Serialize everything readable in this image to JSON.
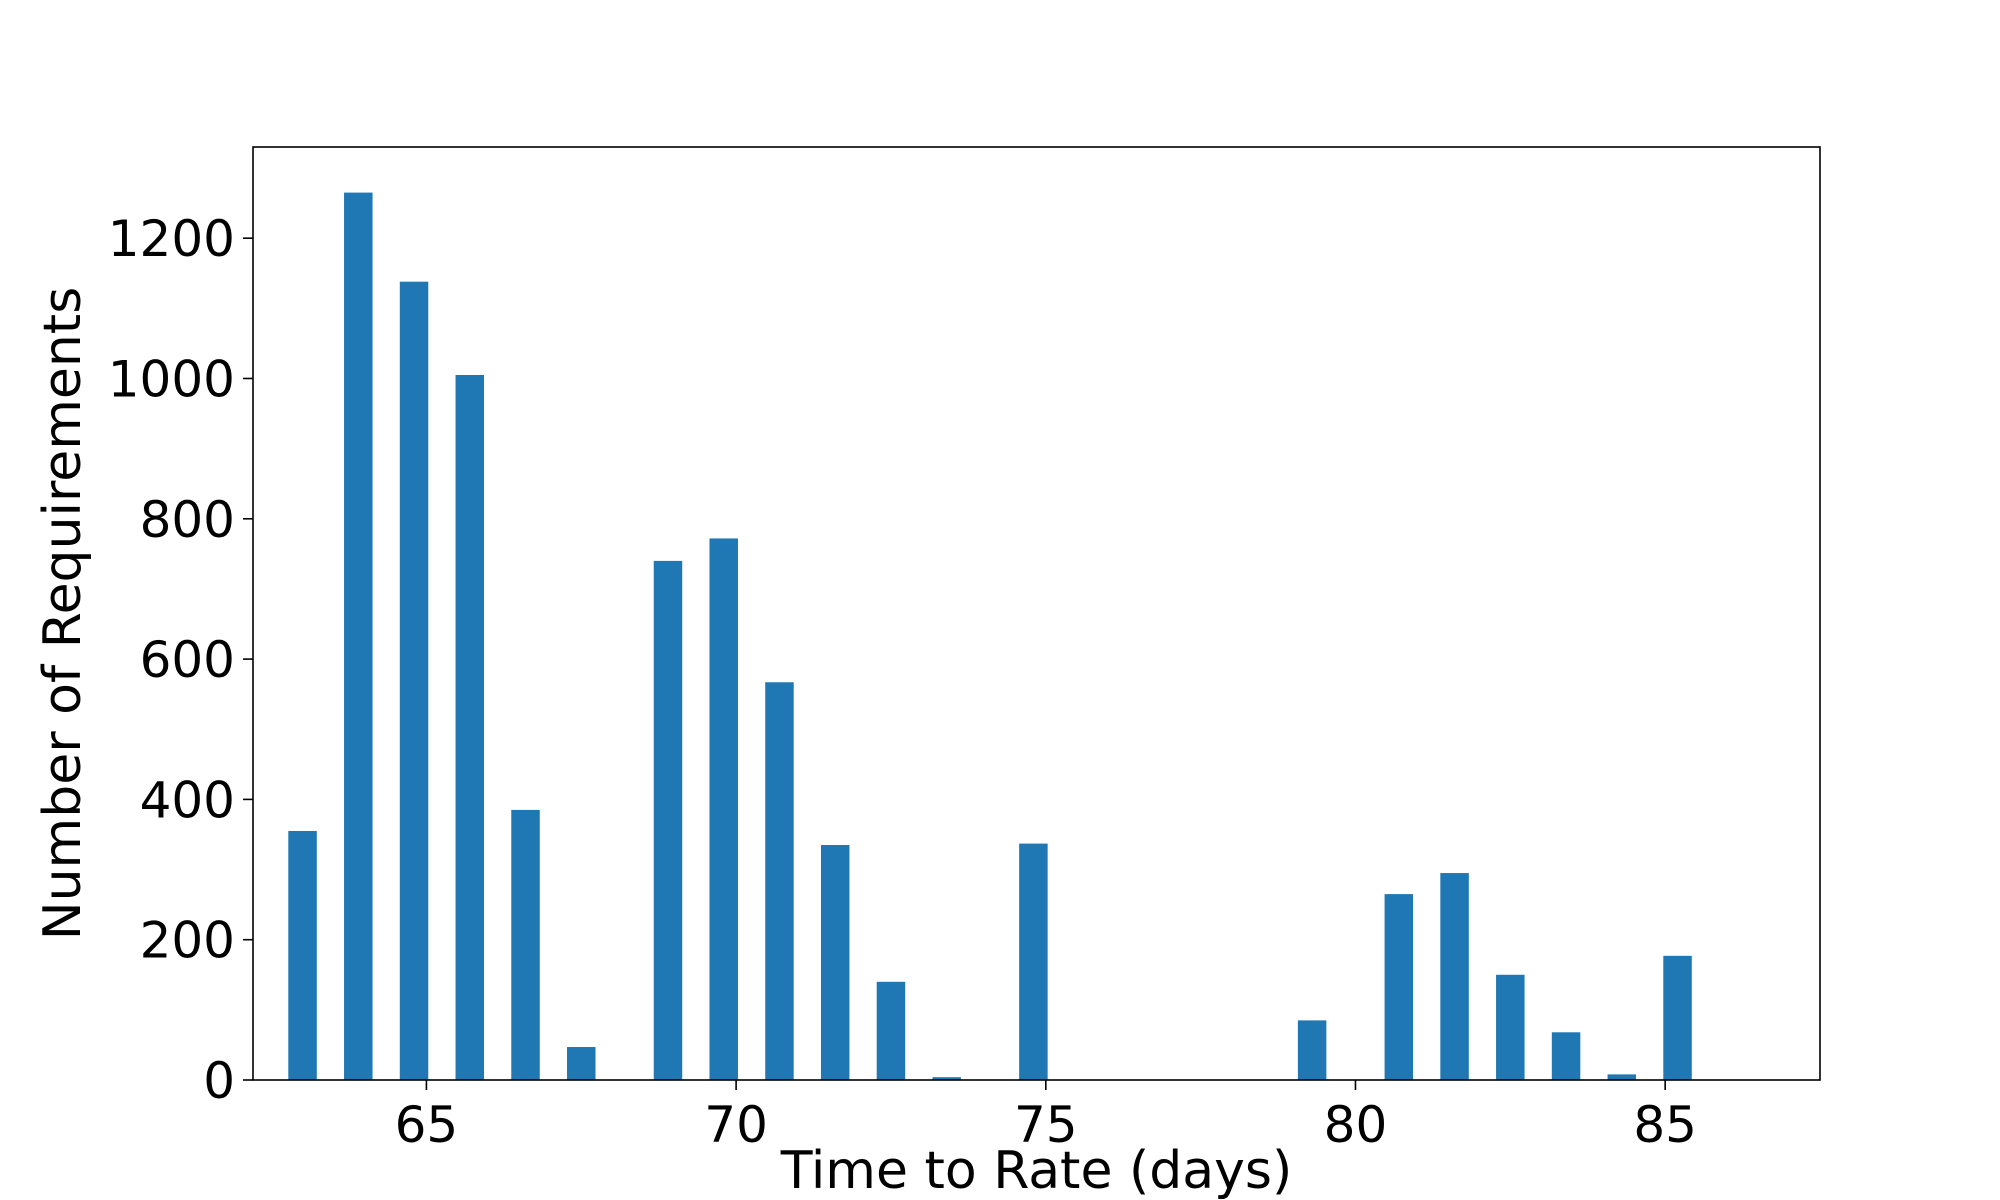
{
  "chart_data": {
    "type": "bar",
    "title": "",
    "xlabel": "Time to Rate (days)",
    "ylabel": "Number of Requirements",
    "xlim": [
      62.2,
      87.5
    ],
    "ylim": [
      0,
      1330
    ],
    "xticks": [
      65,
      70,
      75,
      80,
      85
    ],
    "yticks": [
      0,
      200,
      400,
      600,
      800,
      1000,
      1200
    ],
    "bar_width_days": 0.46,
    "color": "#1f77b4",
    "grid": false,
    "legend": "none",
    "bars": [
      {
        "x": 63.0,
        "value": 355
      },
      {
        "x": 63.9,
        "value": 1265
      },
      {
        "x": 64.8,
        "value": 1138
      },
      {
        "x": 65.7,
        "value": 1005
      },
      {
        "x": 66.6,
        "value": 385
      },
      {
        "x": 67.5,
        "value": 47
      },
      {
        "x": 68.9,
        "value": 740
      },
      {
        "x": 69.8,
        "value": 772
      },
      {
        "x": 70.7,
        "value": 567
      },
      {
        "x": 71.6,
        "value": 335
      },
      {
        "x": 72.5,
        "value": 140
      },
      {
        "x": 73.4,
        "value": 4
      },
      {
        "x": 74.8,
        "value": 337
      },
      {
        "x": 79.3,
        "value": 85
      },
      {
        "x": 80.7,
        "value": 265
      },
      {
        "x": 81.6,
        "value": 295
      },
      {
        "x": 82.5,
        "value": 150
      },
      {
        "x": 83.4,
        "value": 68
      },
      {
        "x": 84.3,
        "value": 8
      },
      {
        "x": 85.2,
        "value": 177
      }
    ]
  }
}
